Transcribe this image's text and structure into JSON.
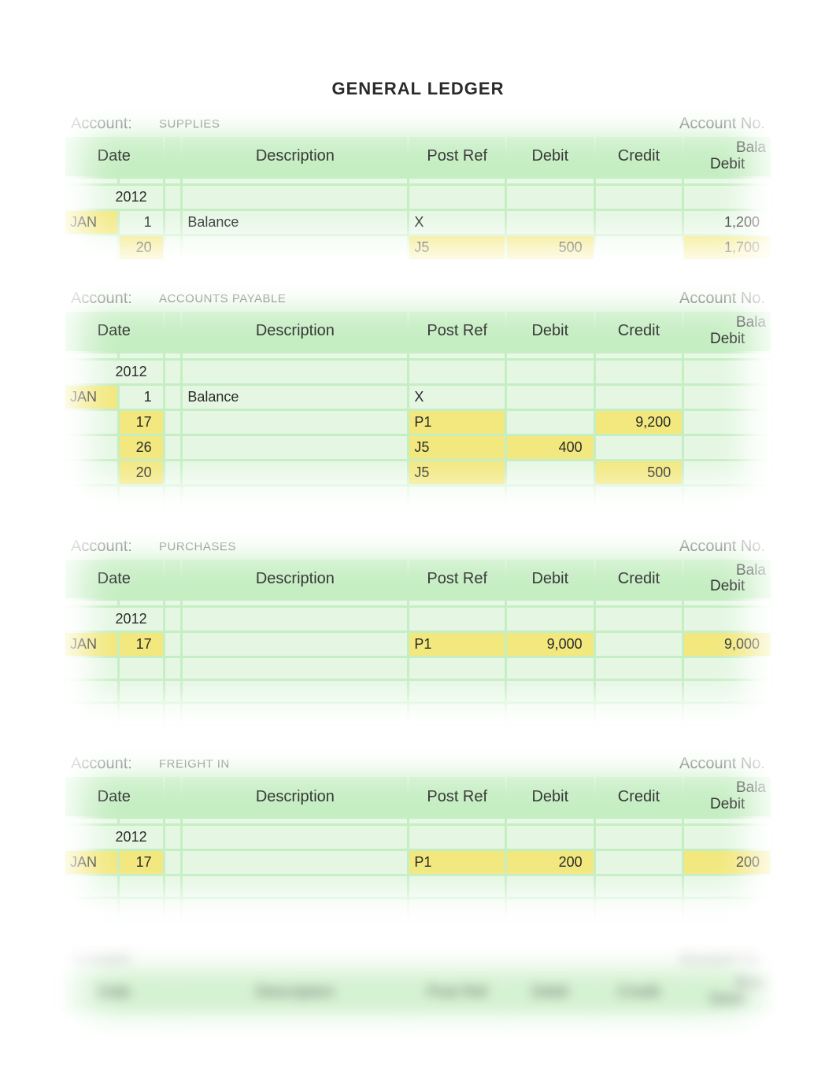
{
  "title": "GENERAL LEDGER",
  "labels": {
    "account": "Account:",
    "account_no": "Account No.",
    "columns": {
      "date": "Date",
      "description": "Description",
      "post_ref": "Post Ref",
      "debit": "Debit",
      "credit": "Credit",
      "balance_top": "Bala",
      "balance_bottom": "Debit"
    }
  },
  "colors": {
    "block_bg": "#c5eec2",
    "highlight": "#f2e87e",
    "cell_bg": "rgba(255,255,255,0.55)",
    "page_bg": "#ffffff",
    "text": "#2a2a2a"
  },
  "ledgers": [
    {
      "name": "SUPPLIES",
      "year": "2012",
      "rows": [
        {
          "month": "JAN",
          "day": "1",
          "desc": "Balance",
          "post": "X",
          "debit": "",
          "credit": "",
          "bal": "1,200",
          "hl": {
            "month": true,
            "bal": false
          }
        },
        {
          "month": "",
          "day": "20",
          "desc": "",
          "post": "J5",
          "debit": "500",
          "credit": "",
          "bal": "1,700",
          "hl": {
            "day": true,
            "post": true,
            "debit": true,
            "bal": true
          }
        }
      ],
      "extra_rows": 0
    },
    {
      "name": "ACCOUNTS PAYABLE",
      "year": "2012",
      "rows": [
        {
          "month": "JAN",
          "day": "1",
          "desc": "Balance",
          "post": "X",
          "debit": "",
          "credit": "",
          "bal": "",
          "hl": {
            "month": true
          }
        },
        {
          "month": "",
          "day": "17",
          "desc": "",
          "post": "P1",
          "debit": "",
          "credit": "9,200",
          "bal": "",
          "hl": {
            "day": true,
            "post": true,
            "credit": true
          }
        },
        {
          "month": "",
          "day": "26",
          "desc": "",
          "post": "J5",
          "debit": "400",
          "credit": "",
          "bal": "",
          "hl": {
            "day": true,
            "post": true,
            "debit": true
          }
        },
        {
          "month": "",
          "day": "20",
          "desc": "",
          "post": "J5",
          "debit": "",
          "credit": "500",
          "bal": "",
          "hl": {
            "day": true,
            "post": true,
            "credit": true
          }
        }
      ],
      "extra_rows": 1
    },
    {
      "name": "PURCHASES",
      "year": "2012",
      "rows": [
        {
          "month": "JAN",
          "day": "17",
          "desc": "",
          "post": "P1",
          "debit": "9,000",
          "credit": "",
          "bal": "9,000",
          "hl": {
            "month": true,
            "day": true,
            "post": true,
            "debit": true,
            "bal": true
          }
        }
      ],
      "extra_rows": 3
    },
    {
      "name": "FREIGHT IN",
      "year": "2012",
      "rows": [
        {
          "month": "JAN",
          "day": "17",
          "desc": "",
          "post": "P1",
          "debit": "200",
          "credit": "",
          "bal": "200",
          "hl": {
            "month": true,
            "day": true,
            "post": true,
            "debit": true,
            "bal": true
          }
        }
      ],
      "extra_rows": 2
    }
  ],
  "blurred_ledger": {
    "name": "",
    "extra_rows": 1
  }
}
